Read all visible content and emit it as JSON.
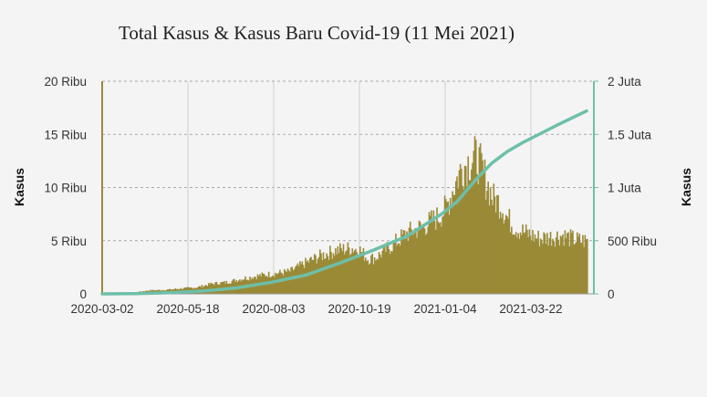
{
  "chart_data": {
    "type": "bar",
    "title": "Total Kasus & Kasus Baru Covid-19 (11 Mei 2021)",
    "ylabel": "Kasus",
    "y2label": "Kasus",
    "ylim": [
      0,
      20000
    ],
    "y2lim": [
      0,
      2000000
    ],
    "yticks": [
      {
        "value": 0,
        "label": "0"
      },
      {
        "value": 5000,
        "label": "5 Ribu"
      },
      {
        "value": 10000,
        "label": "10 Ribu"
      },
      {
        "value": 15000,
        "label": "15 Ribu"
      },
      {
        "value": 20000,
        "label": "20 Ribu"
      }
    ],
    "y2ticks": [
      {
        "value": 0,
        "label": "0"
      },
      {
        "value": 500000,
        "label": "500 Ribu"
      },
      {
        "value": 1000000,
        "label": "1 Juta"
      },
      {
        "value": 1500000,
        "label": "1.5 Juta"
      },
      {
        "value": 2000000,
        "label": "2 Juta"
      }
    ],
    "xticks": [
      "2020-03-02",
      "2020-05-18",
      "2020-08-03",
      "2020-10-19",
      "2021-01-04",
      "2021-03-22"
    ],
    "x_range": [
      "2020-03-02",
      "2021-05-11"
    ],
    "grid": true,
    "colors": {
      "bars": "#9a8a37",
      "line": "#6dbfa9",
      "left_axis": "#9a8a37",
      "right_axis": "#6dbfa9",
      "grid": "#aaaaaa"
    },
    "series": [
      {
        "name": "Kasus Baru",
        "kind": "bar",
        "axis": "left",
        "points": [
          [
            "2020-03-02",
            2
          ],
          [
            "2020-03-16",
            50
          ],
          [
            "2020-03-30",
            130
          ],
          [
            "2020-04-13",
            330
          ],
          [
            "2020-04-27",
            370
          ],
          [
            "2020-05-11",
            500
          ],
          [
            "2020-05-25",
            600
          ],
          [
            "2020-06-08",
            950
          ],
          [
            "2020-06-22",
            1100
          ],
          [
            "2020-07-06",
            1450
          ],
          [
            "2020-07-20",
            1700
          ],
          [
            "2020-08-03",
            1900
          ],
          [
            "2020-08-17",
            2100
          ],
          [
            "2020-08-31",
            2900
          ],
          [
            "2020-09-14",
            3600
          ],
          [
            "2020-09-28",
            4100
          ],
          [
            "2020-10-12",
            4300
          ],
          [
            "2020-10-19",
            4100
          ],
          [
            "2020-10-26",
            3300
          ],
          [
            "2020-11-02",
            3400
          ],
          [
            "2020-11-16",
            4500
          ],
          [
            "2020-11-30",
            5700
          ],
          [
            "2020-12-14",
            6300
          ],
          [
            "2020-12-28",
            7200
          ],
          [
            "2021-01-04",
            8000
          ],
          [
            "2021-01-11",
            10000
          ],
          [
            "2021-01-18",
            11800
          ],
          [
            "2021-01-25",
            12500
          ],
          [
            "2021-02-01",
            12800
          ],
          [
            "2021-02-08",
            11000
          ],
          [
            "2021-02-15",
            9000
          ],
          [
            "2021-02-22",
            8500
          ],
          [
            "2021-03-01",
            7000
          ],
          [
            "2021-03-08",
            6200
          ],
          [
            "2021-03-15",
            5800
          ],
          [
            "2021-03-22",
            5500
          ],
          [
            "2021-03-29",
            5200
          ],
          [
            "2021-04-05",
            5300
          ],
          [
            "2021-04-12",
            5400
          ],
          [
            "2021-04-19",
            5500
          ],
          [
            "2021-04-26",
            5200
          ],
          [
            "2021-05-04",
            5000
          ],
          [
            "2021-05-11",
            5000
          ]
        ]
      },
      {
        "name": "Total Kasus",
        "kind": "line",
        "axis": "right",
        "points": [
          [
            "2020-03-02",
            2
          ],
          [
            "2020-04-01",
            1700
          ],
          [
            "2020-05-01",
            10500
          ],
          [
            "2020-06-01",
            27000
          ],
          [
            "2020-07-01",
            57000
          ],
          [
            "2020-08-01",
            109000
          ],
          [
            "2020-09-01",
            177000
          ],
          [
            "2020-10-01",
            288000
          ],
          [
            "2020-11-01",
            413000
          ],
          [
            "2020-12-01",
            544000
          ],
          [
            "2021-01-01",
            752000
          ],
          [
            "2021-01-15",
            870000
          ],
          [
            "2021-02-01",
            1080000
          ],
          [
            "2021-02-15",
            1230000
          ],
          [
            "2021-03-01",
            1340000
          ],
          [
            "2021-03-15",
            1425000
          ],
          [
            "2021-04-01",
            1515000
          ],
          [
            "2021-04-15",
            1590000
          ],
          [
            "2021-05-01",
            1670000
          ],
          [
            "2021-05-11",
            1720000
          ]
        ]
      }
    ]
  }
}
